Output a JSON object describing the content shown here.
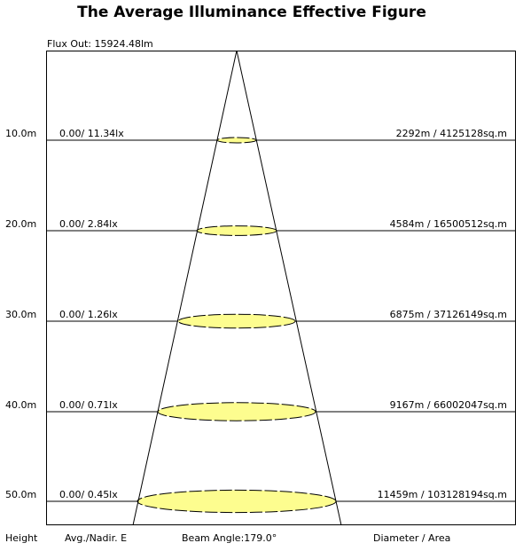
{
  "title": "The Average Illuminance Effective Figure",
  "flux_out": "Flux Out: 15924.48lm",
  "rows": [
    {
      "height": "10.0m",
      "illuminance": "0.00/ 11.34lx",
      "diameter_area": "2292m / 4125128sq.m"
    },
    {
      "height": "20.0m",
      "illuminance": "0.00/ 2.84lx",
      "diameter_area": "4584m / 16500512sq.m"
    },
    {
      "height": "30.0m",
      "illuminance": "0.00/ 1.26lx",
      "diameter_area": "6875m / 37126149sq.m"
    },
    {
      "height": "40.0m",
      "illuminance": "0.00/ 0.71lx",
      "diameter_area": "9167m / 66002047sq.m"
    },
    {
      "height": "50.0m",
      "illuminance": "0.00/ 0.45lx",
      "diameter_area": "11459m / 103128194sq.m"
    }
  ],
  "footer": {
    "height": "Height",
    "avg_nadir": "Avg./Nadir. E",
    "beam_angle": "Beam Angle:179.0°",
    "diameter_area": "Diameter / Area"
  },
  "colors": {
    "spot_fill": "#fdfd8f",
    "line": "#000000"
  }
}
